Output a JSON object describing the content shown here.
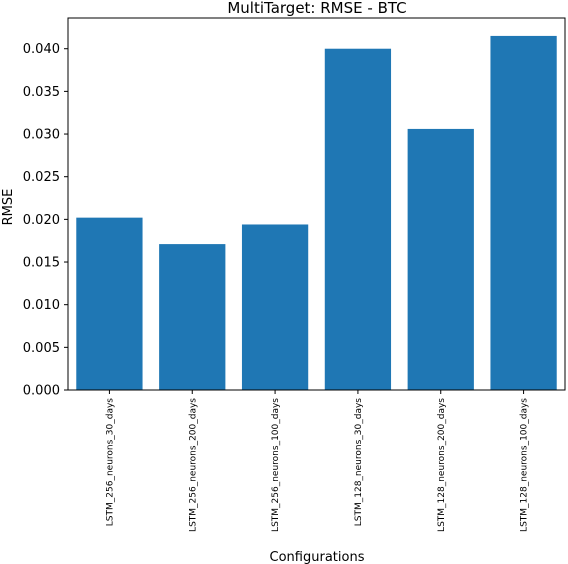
{
  "chart_data": {
    "type": "bar",
    "title": "MultiTarget: RMSE - BTC",
    "xlabel": "Configurations",
    "ylabel": "RMSE",
    "categories": [
      "LSTM_256_neurons_30_days",
      "LSTM_256_neurons_200_days",
      "LSTM_256_neurons_100_days",
      "LSTM_128_neurons_30_days",
      "LSTM_128_neurons_200_days",
      "LSTM_128_neurons_100_days"
    ],
    "values": [
      0.0202,
      0.0171,
      0.0194,
      0.04,
      0.0306,
      0.0415
    ],
    "ylim": [
      0,
      0.0436
    ],
    "yticks": [
      0.0,
      0.005,
      0.01,
      0.015,
      0.02,
      0.025,
      0.03,
      0.035,
      0.04
    ],
    "ytick_labels": [
      "0.000",
      "0.005",
      "0.010",
      "0.015",
      "0.020",
      "0.025",
      "0.030",
      "0.035",
      "0.040"
    ],
    "bar_color": "#1f77b4",
    "grid": false,
    "legend": false
  }
}
